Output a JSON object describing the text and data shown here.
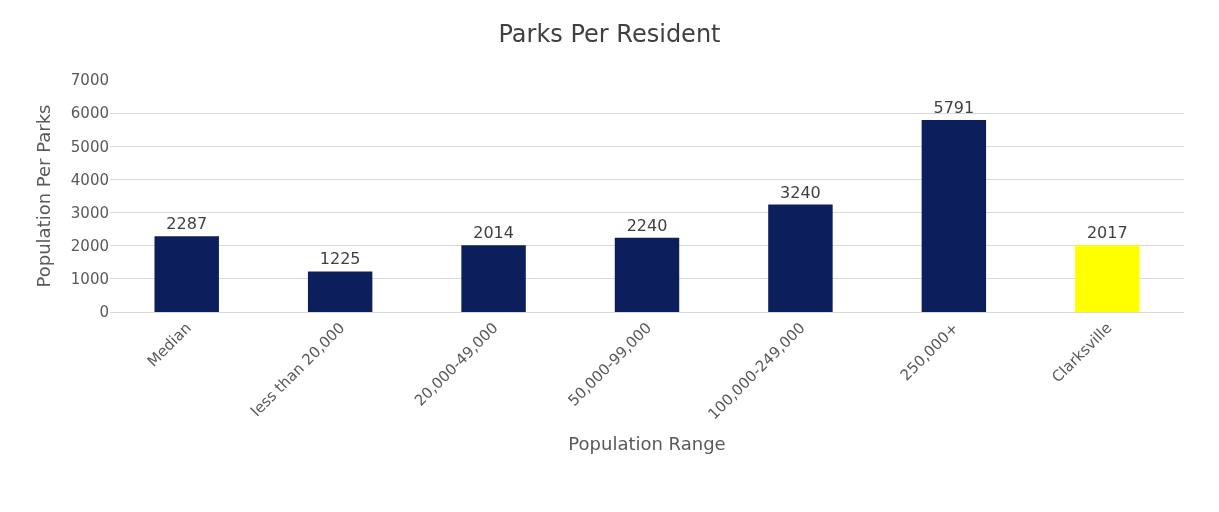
{
  "chart_data": {
    "type": "bar",
    "title": "Parks Per Resident",
    "xlabel": "Population Range",
    "ylabel": "Population Per Parks",
    "categories": [
      "Median",
      "less than 20,000",
      "20,000-49,000",
      "50,000-99,000",
      "100,000-249,000",
      "250,000+",
      "Clarksville"
    ],
    "values": [
      2287,
      1225,
      2014,
      2240,
      3240,
      5791,
      2017
    ],
    "colors": [
      "#0c1e5b",
      "#0c1e5b",
      "#0c1e5b",
      "#0c1e5b",
      "#0c1e5b",
      "#0c1e5b",
      "#ffff00"
    ],
    "ylim": [
      0,
      7000
    ],
    "yticks": [
      0,
      1000,
      2000,
      3000,
      4000,
      5000,
      6000,
      7000
    ],
    "grid": "y",
    "data_labels": true,
    "legend": false
  }
}
